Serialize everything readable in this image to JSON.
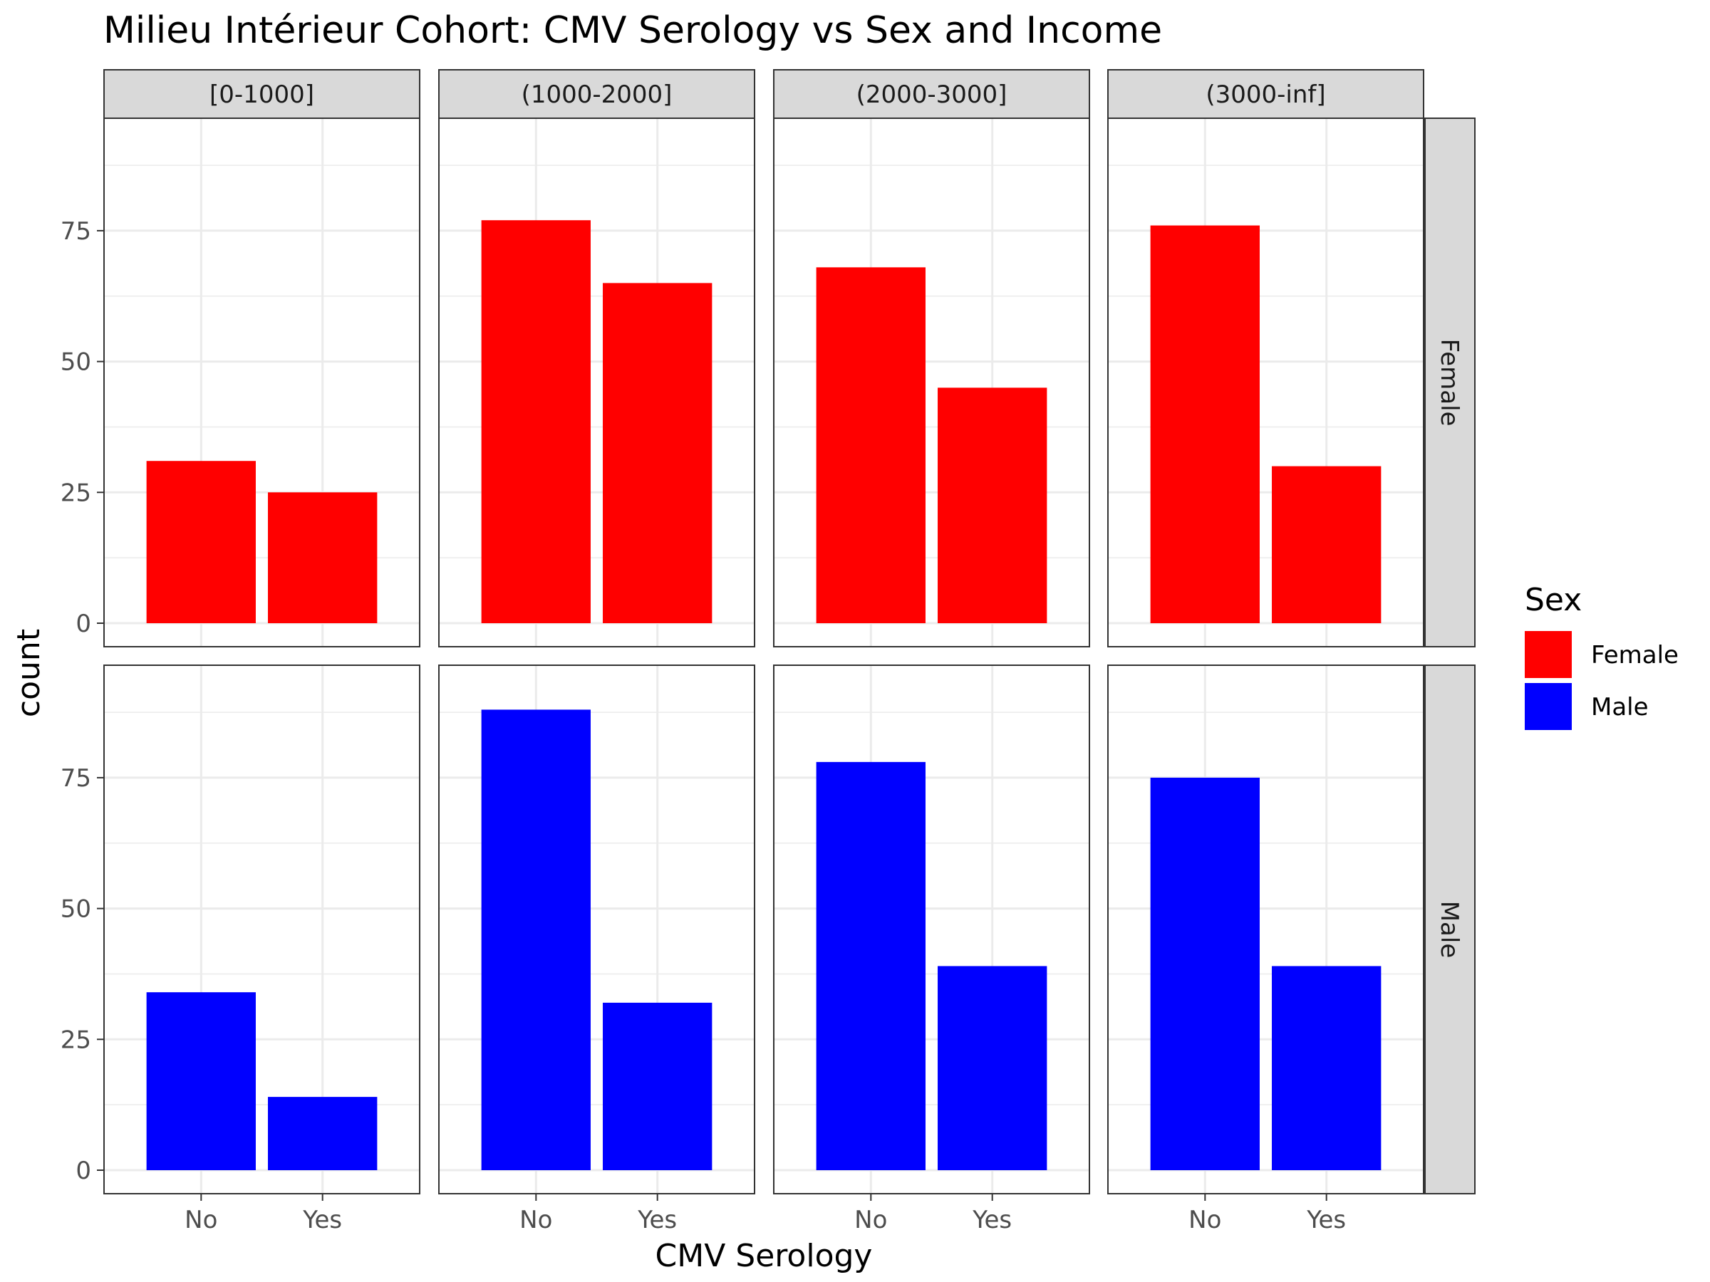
{
  "chart_data": {
    "type": "bar",
    "title": "Milieu Intérieur Cohort: CMV Serology vs Sex and Income",
    "xlabel": "CMV Serology",
    "ylabel": "count",
    "categories": [
      "No",
      "Yes"
    ],
    "ylim": [
      0,
      92
    ],
    "yticks": [
      0,
      25,
      50,
      75
    ],
    "grid": true,
    "facets": {
      "columns": [
        "[0-1000]",
        "(1000-2000]",
        "(2000-3000]",
        "(3000-inf]"
      ],
      "rows": [
        "Female",
        "Male"
      ]
    },
    "series": [
      {
        "name": "Female",
        "color": "#FF0000",
        "values": [
          [
            31,
            25
          ],
          [
            77,
            65
          ],
          [
            68,
            45
          ],
          [
            76,
            30
          ]
        ]
      },
      {
        "name": "Male",
        "color": "#0000FF",
        "values": [
          [
            34,
            14
          ],
          [
            88,
            32
          ],
          [
            78,
            39
          ],
          [
            75,
            39
          ]
        ]
      }
    ],
    "legend": {
      "title": "Sex",
      "position": "right",
      "items": [
        "Female",
        "Male"
      ]
    }
  }
}
